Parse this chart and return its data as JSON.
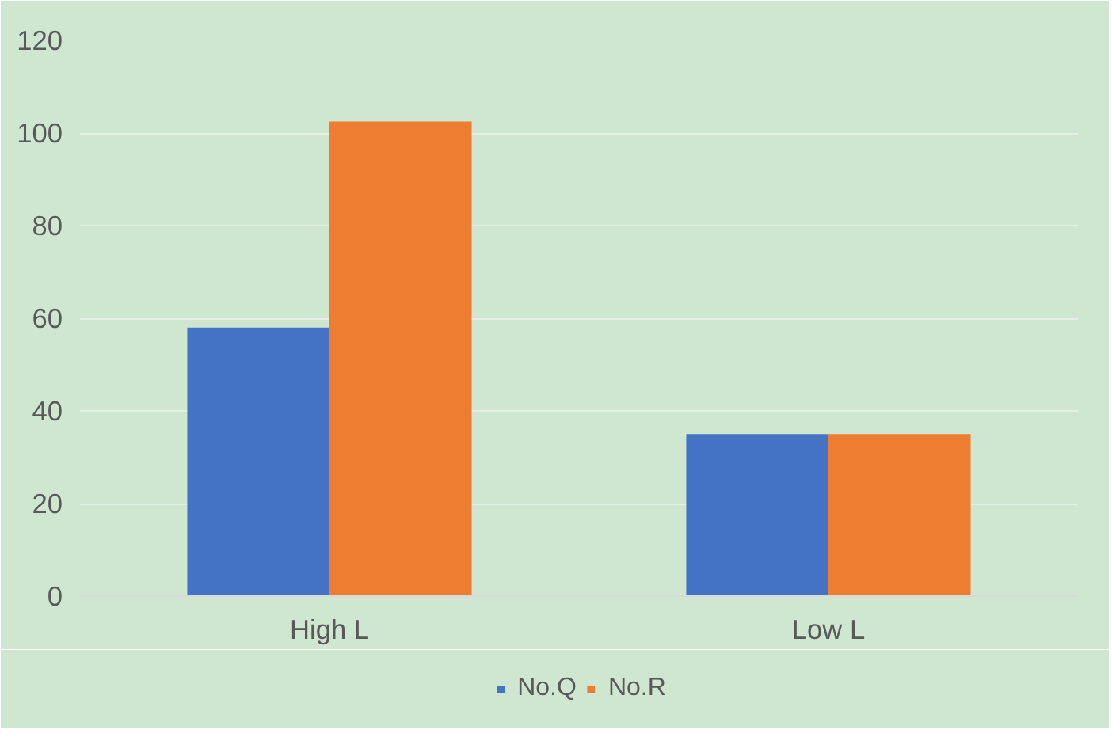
{
  "chart_data": {
    "type": "bar",
    "categories": [
      "High L",
      "Low L"
    ],
    "series": [
      {
        "name": "No.Q",
        "color": "#4472c4",
        "values": [
          58,
          35
        ]
      },
      {
        "name": "No.R",
        "color": "#ed7d31",
        "values": [
          102.5,
          35
        ]
      }
    ],
    "ylim": [
      0,
      120
    ],
    "yticks": [
      0,
      20,
      40,
      60,
      80,
      100,
      120
    ],
    "grid": "y",
    "legend": "bottom"
  }
}
